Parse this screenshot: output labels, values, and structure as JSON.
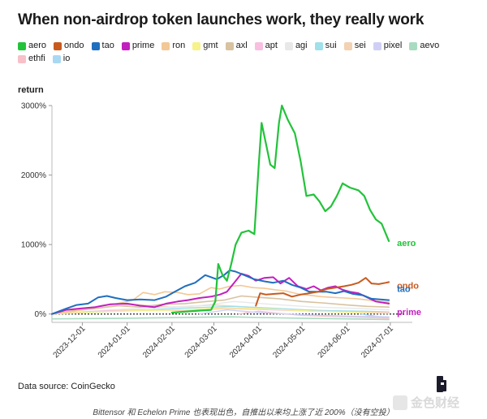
{
  "title": "When non-airdrop token launches work, they really work",
  "source": "Data source: CoinGecko",
  "caption": "Bittensor 和 Echelon Prime 也表现出色，自推出以来均上涨了近 200%（没有空投）",
  "watermark": "金色财经",
  "chart_data": {
    "type": "line",
    "title": "When non-airdrop token launches work, they really work",
    "ylabel": "return",
    "xlabel": "",
    "y_tick_labels": [
      "0%",
      "1000%",
      "2000%",
      "3000%"
    ],
    "y_ticks": [
      0,
      1000,
      2000,
      3000
    ],
    "ylim": [
      -120,
      3000
    ],
    "x_start": "2023-11-10",
    "x_end": "2024-07-05",
    "x_tick_labels": [
      "2023-12-01",
      "2024-01-01",
      "2024-02-01",
      "2024-03-01",
      "2024-04-01",
      "2024-05-01",
      "2024-06-01",
      "2024-07-01"
    ],
    "legend_position": "top-left",
    "grid": false,
    "baseline": 0,
    "series": [
      {
        "name": "aero",
        "color": "#22c33a",
        "width": 2.2,
        "end_label": "aero",
        "points": [
          [
            "2024-02-01",
            20
          ],
          [
            "2024-02-20",
            50
          ],
          [
            "2024-02-28",
            60
          ],
          [
            "2024-03-02",
            180
          ],
          [
            "2024-03-04",
            720
          ],
          [
            "2024-03-07",
            560
          ],
          [
            "2024-03-10",
            480
          ],
          [
            "2024-03-13",
            720
          ],
          [
            "2024-03-16",
            1000
          ],
          [
            "2024-03-20",
            1170
          ],
          [
            "2024-03-25",
            1200
          ],
          [
            "2024-03-29",
            1150
          ],
          [
            "2024-04-01",
            2150
          ],
          [
            "2024-04-03",
            2750
          ],
          [
            "2024-04-06",
            2450
          ],
          [
            "2024-04-09",
            2150
          ],
          [
            "2024-04-12",
            2100
          ],
          [
            "2024-04-15",
            2750
          ],
          [
            "2024-04-17",
            3000
          ],
          [
            "2024-04-21",
            2800
          ],
          [
            "2024-04-26",
            2600
          ],
          [
            "2024-04-30",
            2200
          ],
          [
            "2024-05-04",
            1700
          ],
          [
            "2024-05-09",
            1720
          ],
          [
            "2024-05-13",
            1620
          ],
          [
            "2024-05-17",
            1480
          ],
          [
            "2024-05-21",
            1550
          ],
          [
            "2024-05-25",
            1700
          ],
          [
            "2024-05-29",
            1880
          ],
          [
            "2024-06-03",
            1820
          ],
          [
            "2024-06-09",
            1780
          ],
          [
            "2024-06-13",
            1700
          ],
          [
            "2024-06-17",
            1500
          ],
          [
            "2024-06-21",
            1360
          ],
          [
            "2024-06-25",
            1300
          ],
          [
            "2024-06-30",
            1050
          ]
        ]
      },
      {
        "name": "ondo",
        "color": "#c85a1e",
        "width": 2,
        "end_label": "ondo",
        "points": [
          [
            "2024-03-30",
            120
          ],
          [
            "2024-04-02",
            300
          ],
          [
            "2024-04-06",
            280
          ],
          [
            "2024-04-12",
            290
          ],
          [
            "2024-04-18",
            300
          ],
          [
            "2024-04-24",
            250
          ],
          [
            "2024-04-30",
            280
          ],
          [
            "2024-05-06",
            300
          ],
          [
            "2024-05-12",
            320
          ],
          [
            "2024-05-18",
            360
          ],
          [
            "2024-05-24",
            380
          ],
          [
            "2024-05-30",
            400
          ],
          [
            "2024-06-04",
            420
          ],
          [
            "2024-06-09",
            450
          ],
          [
            "2024-06-14",
            520
          ],
          [
            "2024-06-18",
            440
          ],
          [
            "2024-06-23",
            430
          ],
          [
            "2024-06-28",
            450
          ],
          [
            "2024-06-30",
            460
          ]
        ]
      },
      {
        "name": "tao",
        "color": "#1f6fbf",
        "width": 2,
        "end_label": "tao",
        "points": [
          [
            "2023-11-10",
            0
          ],
          [
            "2023-11-20",
            80
          ],
          [
            "2023-11-27",
            130
          ],
          [
            "2023-12-05",
            150
          ],
          [
            "2023-12-12",
            240
          ],
          [
            "2023-12-18",
            260
          ],
          [
            "2023-12-24",
            230
          ],
          [
            "2024-01-01",
            200
          ],
          [
            "2024-01-10",
            210
          ],
          [
            "2024-01-20",
            200
          ],
          [
            "2024-01-28",
            250
          ],
          [
            "2024-02-03",
            320
          ],
          [
            "2024-02-10",
            400
          ],
          [
            "2024-02-17",
            450
          ],
          [
            "2024-02-24",
            560
          ],
          [
            "2024-03-03",
            500
          ],
          [
            "2024-03-08",
            560
          ],
          [
            "2024-03-12",
            630
          ],
          [
            "2024-03-16",
            610
          ],
          [
            "2024-03-22",
            560
          ],
          [
            "2024-03-29",
            500
          ],
          [
            "2024-04-05",
            470
          ],
          [
            "2024-04-11",
            450
          ],
          [
            "2024-04-18",
            480
          ],
          [
            "2024-04-24",
            420
          ],
          [
            "2024-04-30",
            380
          ],
          [
            "2024-05-06",
            320
          ],
          [
            "2024-05-12",
            320
          ],
          [
            "2024-05-18",
            320
          ],
          [
            "2024-05-24",
            300
          ],
          [
            "2024-05-30",
            330
          ],
          [
            "2024-06-05",
            290
          ],
          [
            "2024-06-12",
            270
          ],
          [
            "2024-06-18",
            220
          ],
          [
            "2024-06-24",
            210
          ],
          [
            "2024-06-30",
            200
          ]
        ]
      },
      {
        "name": "prime",
        "color": "#c21fbf",
        "width": 2,
        "end_label": "prime",
        "points": [
          [
            "2023-11-10",
            0
          ],
          [
            "2023-11-20",
            60
          ],
          [
            "2023-11-30",
            80
          ],
          [
            "2023-12-10",
            100
          ],
          [
            "2023-12-20",
            140
          ],
          [
            "2024-01-01",
            150
          ],
          [
            "2024-01-10",
            120
          ],
          [
            "2024-01-20",
            100
          ],
          [
            "2024-01-28",
            150
          ],
          [
            "2024-02-05",
            180
          ],
          [
            "2024-02-12",
            200
          ],
          [
            "2024-02-20",
            230
          ],
          [
            "2024-02-28",
            250
          ],
          [
            "2024-03-05",
            280
          ],
          [
            "2024-03-10",
            320
          ],
          [
            "2024-03-15",
            450
          ],
          [
            "2024-03-20",
            580
          ],
          [
            "2024-03-25",
            550
          ],
          [
            "2024-03-30",
            480
          ],
          [
            "2024-04-05",
            520
          ],
          [
            "2024-04-11",
            530
          ],
          [
            "2024-04-16",
            440
          ],
          [
            "2024-04-22",
            520
          ],
          [
            "2024-04-28",
            400
          ],
          [
            "2024-05-04",
            360
          ],
          [
            "2024-05-09",
            400
          ],
          [
            "2024-05-14",
            340
          ],
          [
            "2024-05-19",
            380
          ],
          [
            "2024-05-24",
            400
          ],
          [
            "2024-05-29",
            350
          ],
          [
            "2024-06-03",
            320
          ],
          [
            "2024-06-09",
            300
          ],
          [
            "2024-06-15",
            240
          ],
          [
            "2024-06-21",
            180
          ],
          [
            "2024-06-27",
            160
          ],
          [
            "2024-06-30",
            150
          ]
        ]
      },
      {
        "name": "ron",
        "color": "#f2c896",
        "width": 1.6,
        "end_label": "",
        "points": [
          [
            "2023-11-10",
            0
          ],
          [
            "2023-11-25",
            40
          ],
          [
            "2023-12-10",
            100
          ],
          [
            "2023-12-25",
            150
          ],
          [
            "2024-01-05",
            200
          ],
          [
            "2024-01-12",
            310
          ],
          [
            "2024-01-20",
            280
          ],
          [
            "2024-01-27",
            320
          ],
          [
            "2024-02-05",
            310
          ],
          [
            "2024-02-12",
            280
          ],
          [
            "2024-02-20",
            290
          ],
          [
            "2024-02-28",
            380
          ],
          [
            "2024-03-05",
            360
          ],
          [
            "2024-03-12",
            400
          ],
          [
            "2024-03-20",
            410
          ],
          [
            "2024-03-28",
            380
          ],
          [
            "2024-04-05",
            370
          ],
          [
            "2024-04-12",
            350
          ],
          [
            "2024-04-20",
            330
          ],
          [
            "2024-04-28",
            290
          ],
          [
            "2024-05-06",
            270
          ],
          [
            "2024-05-14",
            250
          ],
          [
            "2024-05-22",
            240
          ],
          [
            "2024-05-30",
            230
          ],
          [
            "2024-06-08",
            220
          ],
          [
            "2024-06-16",
            200
          ],
          [
            "2024-06-24",
            180
          ],
          [
            "2024-06-30",
            170
          ]
        ]
      },
      {
        "name": "gmt",
        "color": "#f7f28a",
        "width": 1.4,
        "end_label": "",
        "points": [
          [
            "2023-11-10",
            0
          ],
          [
            "2023-12-10",
            30
          ],
          [
            "2024-01-10",
            50
          ],
          [
            "2024-02-10",
            60
          ],
          [
            "2024-03-10",
            90
          ],
          [
            "2024-04-10",
            70
          ],
          [
            "2024-05-10",
            40
          ],
          [
            "2024-06-10",
            20
          ],
          [
            "2024-06-30",
            10
          ]
        ]
      },
      {
        "name": "axl",
        "color": "#d8c2a0",
        "width": 1.6,
        "end_label": "",
        "points": [
          [
            "2023-11-10",
            0
          ],
          [
            "2023-11-25",
            50
          ],
          [
            "2023-12-10",
            80
          ],
          [
            "2023-12-25",
            120
          ],
          [
            "2024-01-10",
            100
          ],
          [
            "2024-01-25",
            140
          ],
          [
            "2024-02-10",
            150
          ],
          [
            "2024-02-25",
            180
          ],
          [
            "2024-03-08",
            200
          ],
          [
            "2024-03-20",
            260
          ],
          [
            "2024-04-01",
            240
          ],
          [
            "2024-04-15",
            220
          ],
          [
            "2024-05-01",
            180
          ],
          [
            "2024-05-15",
            160
          ],
          [
            "2024-06-01",
            130
          ],
          [
            "2024-06-15",
            110
          ],
          [
            "2024-06-30",
            100
          ]
        ]
      },
      {
        "name": "apt",
        "color": "#f8bfe0",
        "width": 1.4,
        "end_label": "",
        "points": [
          [
            "2023-11-10",
            0
          ],
          [
            "2023-12-10",
            40
          ],
          [
            "2024-01-10",
            60
          ],
          [
            "2024-02-10",
            50
          ],
          [
            "2024-03-10",
            80
          ],
          [
            "2024-04-10",
            60
          ],
          [
            "2024-05-10",
            40
          ],
          [
            "2024-06-10",
            30
          ],
          [
            "2024-06-30",
            20
          ]
        ]
      },
      {
        "name": "agi",
        "color": "#e8e8e8",
        "width": 1.4,
        "end_label": "",
        "points": [
          [
            "2023-11-10",
            0
          ],
          [
            "2023-12-20",
            60
          ],
          [
            "2024-01-20",
            90
          ],
          [
            "2024-02-20",
            120
          ],
          [
            "2024-03-15",
            180
          ],
          [
            "2024-04-10",
            140
          ],
          [
            "2024-05-10",
            100
          ],
          [
            "2024-06-10",
            80
          ],
          [
            "2024-06-30",
            60
          ]
        ]
      },
      {
        "name": "sui",
        "color": "#9fe0ea",
        "width": 1.4,
        "end_label": "",
        "points": [
          [
            "2023-11-10",
            0
          ],
          [
            "2023-12-15",
            30
          ],
          [
            "2024-01-15",
            60
          ],
          [
            "2024-02-15",
            90
          ],
          [
            "2024-03-15",
            110
          ],
          [
            "2024-04-15",
            80
          ],
          [
            "2024-05-15",
            50
          ],
          [
            "2024-06-15",
            40
          ],
          [
            "2024-06-30",
            30
          ]
        ]
      },
      {
        "name": "sei",
        "color": "#f2d2b2",
        "width": 1.4,
        "end_label": "",
        "points": [
          [
            "2023-11-10",
            0
          ],
          [
            "2023-12-10",
            80
          ],
          [
            "2024-01-05",
            140
          ],
          [
            "2024-02-01",
            100
          ],
          [
            "2024-03-01",
            130
          ],
          [
            "2024-04-01",
            90
          ],
          [
            "2024-05-01",
            60
          ],
          [
            "2024-06-01",
            40
          ],
          [
            "2024-06-30",
            20
          ]
        ]
      },
      {
        "name": "pixel",
        "color": "#cfcff5",
        "width": 1.4,
        "end_label": "",
        "points": [
          [
            "2024-02-20",
            0
          ],
          [
            "2024-03-10",
            60
          ],
          [
            "2024-04-01",
            20
          ],
          [
            "2024-05-01",
            -10
          ],
          [
            "2024-06-01",
            -30
          ],
          [
            "2024-06-30",
            -40
          ]
        ]
      },
      {
        "name": "aevo",
        "color": "#a8dcc0",
        "width": 1.6,
        "end_label": "",
        "points": [
          [
            "2023-11-10",
            -70
          ],
          [
            "2024-01-01",
            -60
          ],
          [
            "2024-03-13",
            -40
          ],
          [
            "2024-04-01",
            -50
          ],
          [
            "2024-05-01",
            -60
          ],
          [
            "2024-06-01",
            -70
          ],
          [
            "2024-06-30",
            -80
          ]
        ]
      },
      {
        "name": "ethfi",
        "color": "#f8c0c8",
        "width": 1.4,
        "end_label": "",
        "points": [
          [
            "2024-03-18",
            0
          ],
          [
            "2024-04-01",
            40
          ],
          [
            "2024-04-15",
            10
          ],
          [
            "2024-05-01",
            -20
          ],
          [
            "2024-06-01",
            -40
          ],
          [
            "2024-06-30",
            -60
          ]
        ]
      },
      {
        "name": "io",
        "color": "#a9d8f2",
        "width": 1.4,
        "end_label": "",
        "points": [
          [
            "2024-06-11",
            0
          ],
          [
            "2024-06-20",
            -30
          ],
          [
            "2024-06-30",
            -50
          ]
        ]
      }
    ]
  }
}
